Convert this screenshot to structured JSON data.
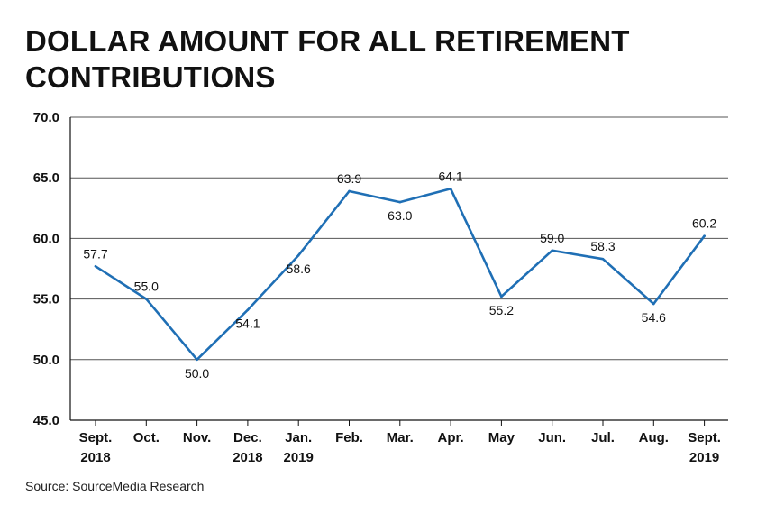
{
  "chart_data": {
    "type": "line",
    "title_lines": [
      "DOLLAR AMOUNT FOR ALL RETIREMENT",
      "CONTRIBUTIONS"
    ],
    "categories": [
      [
        "Sept.",
        "2018"
      ],
      [
        "Oct."
      ],
      [
        "Nov."
      ],
      [
        "Dec.",
        "2018"
      ],
      [
        "Jan.",
        "2019"
      ],
      [
        "Feb."
      ],
      [
        "Mar."
      ],
      [
        "Apr."
      ],
      [
        "May"
      ],
      [
        "Jun."
      ],
      [
        "Jul."
      ],
      [
        "Aug."
      ],
      [
        "Sept.",
        "2019"
      ]
    ],
    "values": [
      57.7,
      55.0,
      50.0,
      54.1,
      58.6,
      63.9,
      63.0,
      64.1,
      55.2,
      59.0,
      58.3,
      54.6,
      60.2
    ],
    "value_labels": [
      "57.7",
      "55.0",
      "50.0",
      "54.1",
      "58.6",
      "63.9",
      "63.0",
      "64.1",
      "55.2",
      "59.0",
      "58.3",
      "54.6",
      "60.2"
    ],
    "label_positions": [
      "above",
      "above",
      "below",
      "below",
      "below",
      "above",
      "below",
      "above",
      "below",
      "above",
      "above",
      "below",
      "above"
    ],
    "yticks": [
      "45.0",
      "50.0",
      "55.0",
      "60.0",
      "65.0",
      "70.0"
    ],
    "ylim": [
      45,
      70
    ],
    "ytick_step": 5,
    "xlabel": "",
    "ylabel": "",
    "grid": true,
    "colors": {
      "line": "#1f6fb5",
      "grid": "#555555",
      "axis": "#111111"
    }
  },
  "source": "Source: SourceMedia Research"
}
